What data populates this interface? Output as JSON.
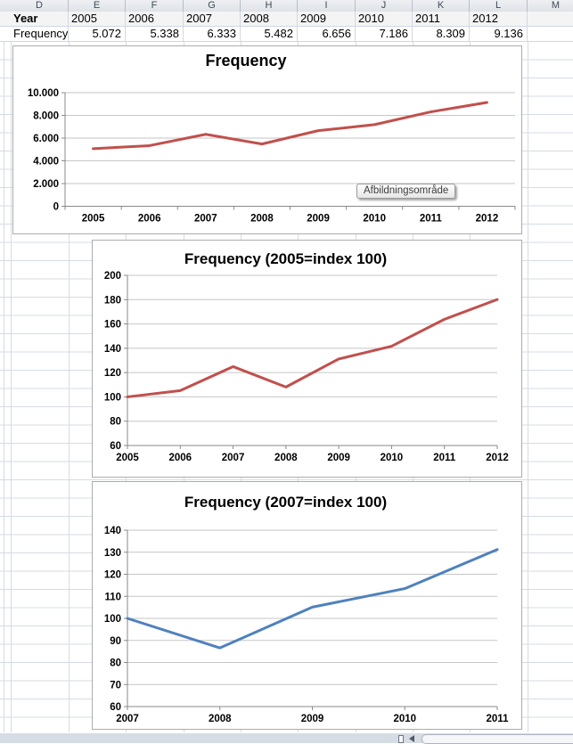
{
  "spreadsheet": {
    "column_headers": [
      "D",
      "E",
      "F",
      "G",
      "H",
      "I",
      "J",
      "K",
      "L",
      "M"
    ],
    "year_row": {
      "label": "Year",
      "values": [
        "2005",
        "2006",
        "2007",
        "2008",
        "2009",
        "2010",
        "2011",
        "2012"
      ]
    },
    "frequency_row": {
      "label": "Frequency",
      "values": [
        "5.072",
        "5.338",
        "6.333",
        "5.482",
        "6.656",
        "7.186",
        "8.309",
        "9.136"
      ]
    }
  },
  "tooltip": {
    "text": "Afbildningsområde"
  },
  "chart_data": [
    {
      "type": "line",
      "title": "Frequency",
      "categories": [
        "2005",
        "2006",
        "2007",
        "2008",
        "2009",
        "2010",
        "2011",
        "2012"
      ],
      "values": [
        5072,
        5338,
        6333,
        5482,
        6656,
        7186,
        8309,
        9136
      ],
      "ylim": [
        0,
        10000
      ],
      "ytick_step": 2000,
      "ytick_labels": [
        "0",
        "2.000",
        "4.000",
        "6.000",
        "8.000",
        "10.000"
      ],
      "line_color": "#C0504D",
      "grid": true,
      "legend": "none",
      "x_mode": "between-ticks",
      "xlabel": "",
      "ylabel": ""
    },
    {
      "type": "line",
      "title": "Frequency (2005=index 100)",
      "categories": [
        "2005",
        "2006",
        "2007",
        "2008",
        "2009",
        "2010",
        "2011",
        "2012"
      ],
      "values": [
        100,
        105.2,
        124.9,
        108.1,
        131.2,
        141.7,
        163.8,
        180.1
      ],
      "ylim": [
        60,
        200
      ],
      "ytick_step": 20,
      "ytick_labels": [
        "60",
        "80",
        "100",
        "120",
        "140",
        "160",
        "180",
        "200"
      ],
      "line_color": "#C0504D",
      "grid": true,
      "legend": "none",
      "x_mode": "on-ticks",
      "xlabel": "",
      "ylabel": ""
    },
    {
      "type": "line",
      "title": "Frequency (2007=index 100)",
      "categories": [
        "2007",
        "2008",
        "2009",
        "2010",
        "2011"
      ],
      "values": [
        100,
        86.6,
        105.1,
        113.5,
        131.2
      ],
      "ylim": [
        60,
        140
      ],
      "ytick_step": 10,
      "ytick_labels": [
        "60",
        "70",
        "80",
        "90",
        "100",
        "110",
        "120",
        "130",
        "140"
      ],
      "line_color": "#4F81BD",
      "grid": true,
      "legend": "none",
      "x_mode": "on-ticks",
      "xlabel": "",
      "ylabel": ""
    }
  ],
  "colors": {
    "red_series": "#C0504D",
    "blue_series": "#4F81BD",
    "gridline": "#C6C6C6",
    "axis": "#898989",
    "sheet_grid": "#D5DBE6"
  }
}
